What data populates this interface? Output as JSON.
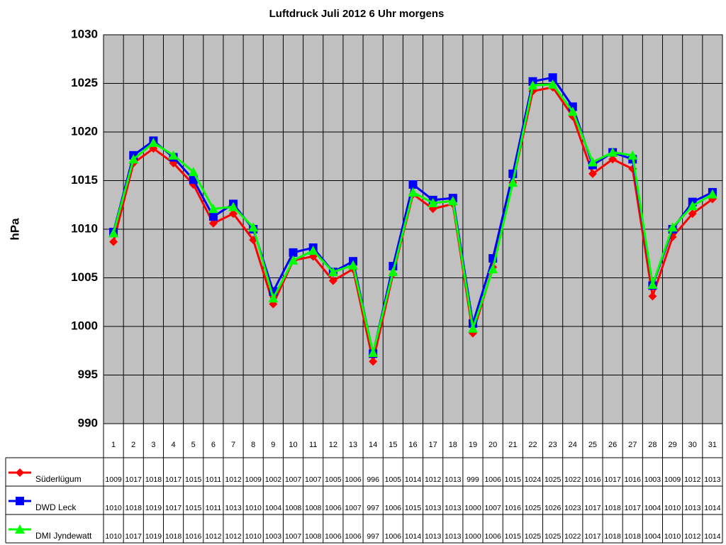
{
  "chart_data": {
    "type": "line",
    "title": "Luftdruck Juli 2012 6 Uhr morgens",
    "y_label": "hPa",
    "categories": [
      "1",
      "2",
      "3",
      "4",
      "5",
      "6",
      "7",
      "8",
      "9",
      "10",
      "11",
      "12",
      "13",
      "14",
      "15",
      "16",
      "17",
      "18",
      "19",
      "20",
      "21",
      "22",
      "23",
      "24",
      "25",
      "26",
      "27",
      "28",
      "29",
      "30",
      "31"
    ],
    "series": [
      {
        "name": "Süderlügum",
        "color": "#ff0000",
        "marker": "diamond",
        "values": [
          1008.7,
          1016.8,
          1018.3,
          1016.8,
          1014.6,
          1010.6,
          1011.6,
          1008.9,
          1002.3,
          1006.8,
          1007.2,
          1004.7,
          1005.9,
          996.4,
          1005.4,
          1013.6,
          1012.1,
          1012.6,
          999.3,
          1006.1,
          1014.8,
          1024.2,
          1024.6,
          1021.6,
          1015.7,
          1017.2,
          1016.2,
          1003.1,
          1009.2,
          1011.6,
          1013.1
        ],
        "value_labels": [
          "1009",
          "1017",
          "1018",
          "1017",
          "1015",
          "1011",
          "1012",
          "1009",
          "1002",
          "1007",
          "1007",
          "1005",
          "1006",
          "996",
          "1005",
          "1014",
          "1012",
          "1013",
          "999",
          "1006",
          "1015",
          "1024",
          "1025",
          "1022",
          "1016",
          "1017",
          "1016",
          "1003",
          "1009",
          "1012",
          "1013"
        ]
      },
      {
        "name": "DWD Leck",
        "color": "#0000ff",
        "marker": "square",
        "values": [
          1009.7,
          1017.6,
          1019.1,
          1017.4,
          1015.1,
          1011.3,
          1012.6,
          1010.0,
          1003.6,
          1007.6,
          1008.1,
          1005.6,
          1006.7,
          997.2,
          1006.2,
          1014.6,
          1013.0,
          1013.2,
          1000.3,
          1007.0,
          1015.7,
          1025.2,
          1025.6,
          1022.6,
          1016.6,
          1017.9,
          1017.2,
          1004.2,
          1010.0,
          1012.8,
          1013.8
        ],
        "value_labels": [
          "1010",
          "1018",
          "1019",
          "1017",
          "1015",
          "1011",
          "1013",
          "1010",
          "1004",
          "1008",
          "1008",
          "1006",
          "1007",
          "997",
          "1006",
          "1015",
          "1013",
          "1013",
          "1000",
          "1007",
          "1016",
          "1025",
          "1026",
          "1023",
          "1017",
          "1018",
          "1017",
          "1004",
          "1010",
          "1013",
          "1014"
        ]
      },
      {
        "name": "DMI Jyndewatt",
        "color": "#00ff00",
        "marker": "triangle",
        "values": [
          1009.6,
          1017.2,
          1018.9,
          1017.6,
          1015.9,
          1012.1,
          1012.3,
          1010.2,
          1002.9,
          1006.8,
          1007.8,
          1005.6,
          1006.3,
          997.3,
          1005.6,
          1013.8,
          1012.7,
          1012.9,
          999.8,
          1005.9,
          1014.8,
          1024.8,
          1024.9,
          1022.1,
          1016.9,
          1017.9,
          1017.6,
          1004.3,
          1010.2,
          1012.4,
          1013.6
        ],
        "value_labels": [
          "1010",
          "1017",
          "1019",
          "1018",
          "1016",
          "1012",
          "1012",
          "1010",
          "1003",
          "1007",
          "1008",
          "1006",
          "1006",
          "997",
          "1006",
          "1014",
          "1013",
          "1013",
          "1000",
          "1006",
          "1015",
          "1025",
          "1025",
          "1022",
          "1017",
          "1018",
          "1018",
          "1004",
          "1010",
          "1012",
          "1014"
        ]
      }
    ],
    "ylim": [
      990,
      1030
    ],
    "yticks": [
      990,
      995,
      1000,
      1005,
      1010,
      1015,
      1020,
      1025,
      1030
    ],
    "grid": true
  }
}
